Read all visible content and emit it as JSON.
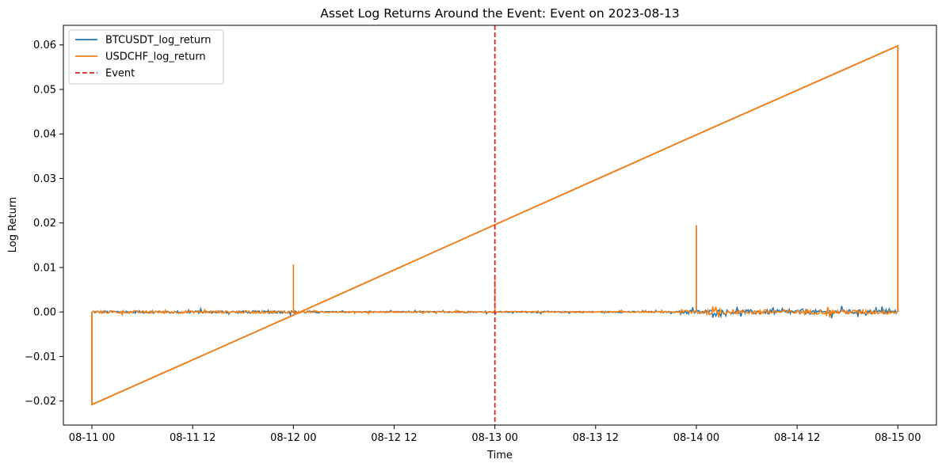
{
  "chart_data": {
    "type": "line",
    "title": "Asset Log Returns Around the Event: Event on 2023-08-13",
    "xlabel": "Time",
    "ylabel": "Log Return",
    "x_tick_labels": [
      "08-11 00",
      "08-11 12",
      "08-12 00",
      "08-12 12",
      "08-13 00",
      "08-13 12",
      "08-14 00",
      "08-14 12",
      "08-15 00"
    ],
    "x_range_hours": [
      -3.4,
      100.6
    ],
    "y_ticks": [
      -0.02,
      -0.01,
      0.0,
      0.01,
      0.02,
      0.03,
      0.04,
      0.05,
      0.06
    ],
    "y_tick_labels": [
      "−0.02",
      "−0.01",
      "0.00",
      "0.01",
      "0.02",
      "0.03",
      "0.04",
      "0.05",
      "0.06"
    ],
    "ylim": [
      -0.0254,
      0.0644
    ],
    "grid": false,
    "legend_position": "upper left",
    "series": [
      {
        "name": "BTCUSDT_log_return",
        "color": "#1f77b4",
        "x_hours": [
          0,
          0,
          24,
          48,
          72,
          96,
          96
        ],
        "values": [
          0.0,
          -0.0208,
          -0.0007,
          0.0196,
          0.0398,
          0.0598,
          0.0
        ]
      },
      {
        "name": "USDCHF_log_return",
        "color": "#ff7f0e",
        "x_hours": [
          0,
          0,
          24,
          48,
          72,
          96,
          96
        ],
        "values": [
          0.0,
          -0.0208,
          -0.0007,
          0.0196,
          0.0398,
          0.0598,
          0.0
        ]
      }
    ],
    "spikes": [
      {
        "x_hours": 24.0,
        "value": 0.0107
      },
      {
        "x_hours": 48.0,
        "value": 0.0075
      },
      {
        "x_hours": 72.0,
        "value": 0.0195
      }
    ],
    "noisy_intervals": [
      {
        "from_hours": 0,
        "to_hours": 26,
        "amplitude": 0.0008
      },
      {
        "from_hours": 26,
        "to_hours": 70,
        "amplitude": 0.0004
      },
      {
        "from_hours": 70,
        "to_hours": 96,
        "amplitude": 0.0014
      }
    ],
    "event": {
      "name": "Event",
      "x_hours": 48,
      "color": "#d62728",
      "style": "dashed"
    }
  }
}
